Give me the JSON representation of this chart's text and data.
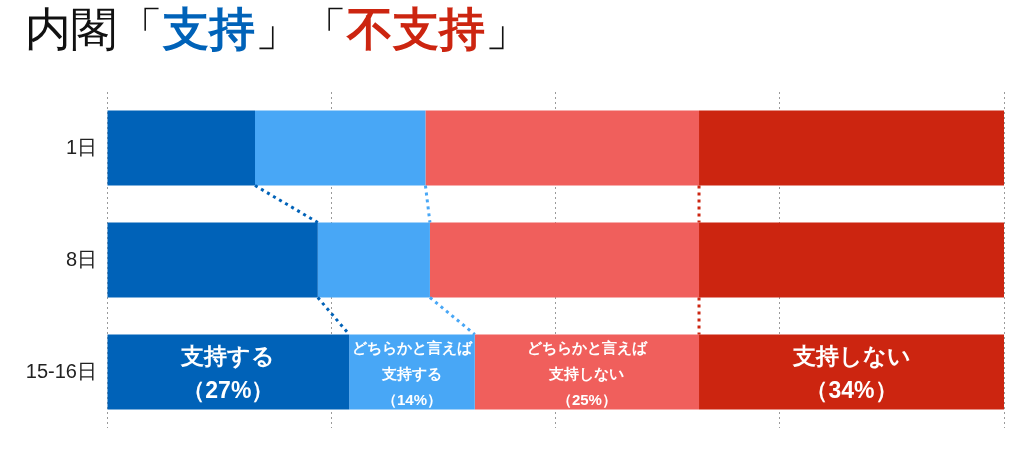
{
  "chart_data": {
    "type": "bar",
    "orientation": "horizontal",
    "stacked": true,
    "title": "内閣「支持」「不支持」",
    "categories": [
      "1日",
      "8日",
      "15-16日"
    ],
    "series": [
      {
        "name": "支持する",
        "color": "#0062b8",
        "values": [
          16.5,
          23.5,
          27
        ],
        "value_labels": [
          null,
          null,
          "（27%）"
        ]
      },
      {
        "name": "どちらかと言えば支持する",
        "color": "#48a7f6",
        "values": [
          19,
          12.5,
          14
        ],
        "value_labels": [
          null,
          null,
          "（14%）"
        ]
      },
      {
        "name": "どちらかと言えば支持しない",
        "color": "#f05f5c",
        "values": [
          30.5,
          30,
          25
        ],
        "value_labels": [
          null,
          null,
          "（25%）"
        ]
      },
      {
        "name": "支持しない",
        "color": "#cc2510",
        "values": [
          34,
          34,
          34
        ],
        "value_labels": [
          null,
          null,
          "（34%）"
        ]
      }
    ],
    "xlim": [
      0,
      100
    ],
    "xticks": [
      {
        "value": 0,
        "label": null
      },
      {
        "value": 25,
        "label": null
      },
      {
        "value": 50,
        "label": null
      },
      {
        "value": 75,
        "label": null
      },
      {
        "value": 100,
        "label": null
      }
    ],
    "grid": "x",
    "tick_labels": "y"
  }
}
